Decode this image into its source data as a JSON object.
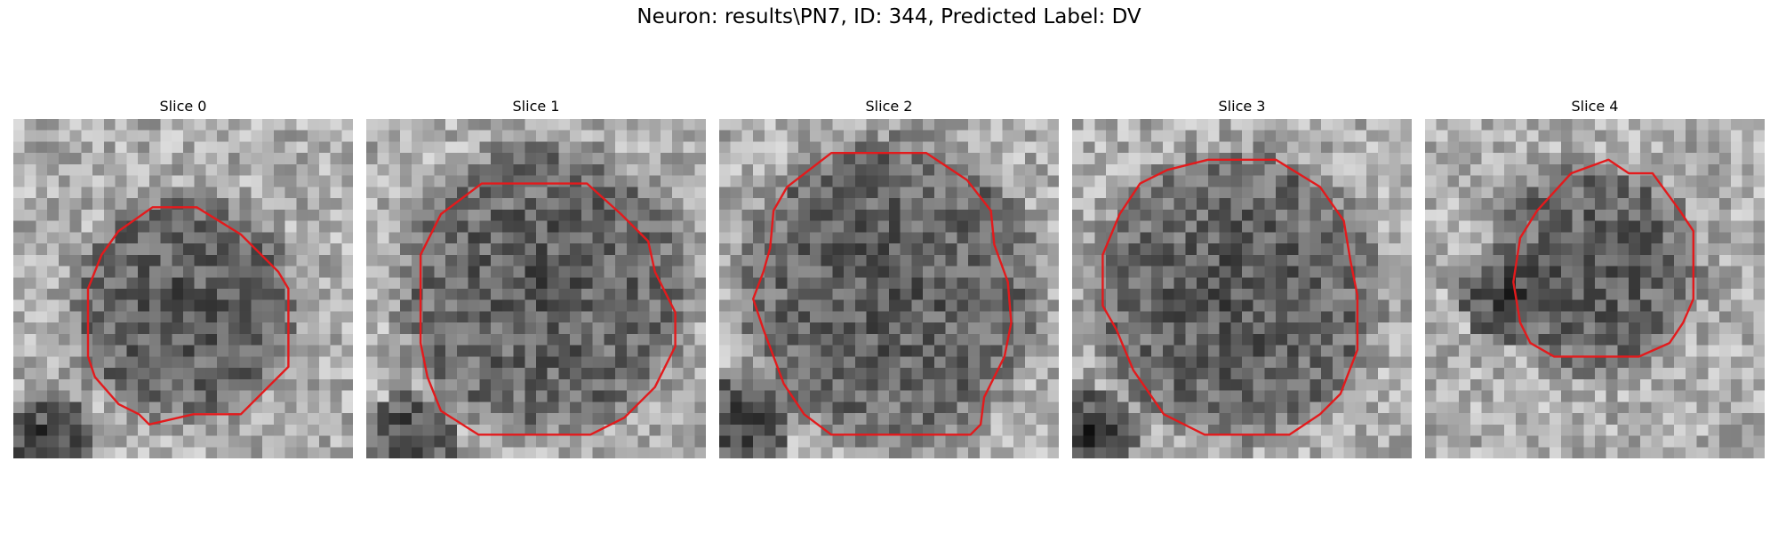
{
  "figure": {
    "title": "Neuron: results\\PN7, ID: 344, Predicted Label: DV"
  },
  "colors": {
    "contour": "#e31a1c",
    "background": "#ffffff",
    "text": "#000000"
  },
  "panels": [
    {
      "title": "Slice 0",
      "seed": 11,
      "contour": [
        [
          0.41,
          0.26
        ],
        [
          0.54,
          0.26
        ],
        [
          0.67,
          0.34
        ],
        [
          0.78,
          0.45
        ],
        [
          0.81,
          0.5
        ],
        [
          0.81,
          0.73
        ],
        [
          0.67,
          0.87
        ],
        [
          0.53,
          0.87
        ],
        [
          0.4,
          0.9
        ],
        [
          0.37,
          0.87
        ],
        [
          0.31,
          0.84
        ],
        [
          0.24,
          0.76
        ],
        [
          0.22,
          0.7
        ],
        [
          0.22,
          0.5
        ],
        [
          0.26,
          0.4
        ],
        [
          0.31,
          0.33
        ]
      ],
      "dark_center": [
        0.5,
        0.56
      ],
      "dark_radius": 0.3,
      "dark_corner": [
        0.1,
        0.95
      ]
    },
    {
      "title": "Slice 1",
      "seed": 23,
      "contour": [
        [
          0.34,
          0.19
        ],
        [
          0.65,
          0.19
        ],
        [
          0.75,
          0.28
        ],
        [
          0.83,
          0.36
        ],
        [
          0.85,
          0.45
        ],
        [
          0.91,
          0.57
        ],
        [
          0.91,
          0.67
        ],
        [
          0.85,
          0.79
        ],
        [
          0.76,
          0.88
        ],
        [
          0.66,
          0.93
        ],
        [
          0.33,
          0.93
        ],
        [
          0.22,
          0.86
        ],
        [
          0.18,
          0.76
        ],
        [
          0.16,
          0.66
        ],
        [
          0.16,
          0.4
        ],
        [
          0.22,
          0.28
        ]
      ],
      "dark_center": [
        0.52,
        0.5
      ],
      "dark_radius": 0.38,
      "dark_corner": [
        0.12,
        0.95
      ]
    },
    {
      "title": "Slice 2",
      "seed": 37,
      "contour": [
        [
          0.33,
          0.1
        ],
        [
          0.61,
          0.1
        ],
        [
          0.73,
          0.18
        ],
        [
          0.8,
          0.27
        ],
        [
          0.81,
          0.37
        ],
        [
          0.85,
          0.48
        ],
        [
          0.86,
          0.6
        ],
        [
          0.84,
          0.7
        ],
        [
          0.78,
          0.82
        ],
        [
          0.77,
          0.9
        ],
        [
          0.74,
          0.93
        ],
        [
          0.33,
          0.93
        ],
        [
          0.25,
          0.87
        ],
        [
          0.19,
          0.78
        ],
        [
          0.13,
          0.62
        ],
        [
          0.1,
          0.53
        ],
        [
          0.13,
          0.45
        ],
        [
          0.15,
          0.38
        ],
        [
          0.16,
          0.27
        ],
        [
          0.2,
          0.2
        ]
      ],
      "dark_center": [
        0.5,
        0.5
      ],
      "dark_radius": 0.4,
      "dark_corner": [
        0.06,
        0.9
      ]
    },
    {
      "title": "Slice 3",
      "seed": 41,
      "contour": [
        [
          0.4,
          0.12
        ],
        [
          0.6,
          0.12
        ],
        [
          0.73,
          0.2
        ],
        [
          0.8,
          0.3
        ],
        [
          0.82,
          0.42
        ],
        [
          0.84,
          0.52
        ],
        [
          0.84,
          0.68
        ],
        [
          0.79,
          0.81
        ],
        [
          0.73,
          0.87
        ],
        [
          0.64,
          0.93
        ],
        [
          0.39,
          0.93
        ],
        [
          0.27,
          0.87
        ],
        [
          0.18,
          0.74
        ],
        [
          0.13,
          0.62
        ],
        [
          0.09,
          0.55
        ],
        [
          0.09,
          0.4
        ],
        [
          0.14,
          0.28
        ],
        [
          0.2,
          0.19
        ],
        [
          0.28,
          0.15
        ]
      ],
      "dark_center": [
        0.48,
        0.52
      ],
      "dark_radius": 0.38,
      "dark_corner": [
        0.05,
        0.92
      ]
    },
    {
      "title": "Slice 4",
      "seed": 53,
      "contour": [
        [
          0.43,
          0.16
        ],
        [
          0.54,
          0.12
        ],
        [
          0.6,
          0.16
        ],
        [
          0.67,
          0.16
        ],
        [
          0.75,
          0.27
        ],
        [
          0.79,
          0.33
        ],
        [
          0.79,
          0.53
        ],
        [
          0.76,
          0.6
        ],
        [
          0.72,
          0.66
        ],
        [
          0.63,
          0.7
        ],
        [
          0.38,
          0.7
        ],
        [
          0.31,
          0.66
        ],
        [
          0.28,
          0.6
        ],
        [
          0.26,
          0.48
        ],
        [
          0.28,
          0.35
        ],
        [
          0.33,
          0.27
        ]
      ],
      "dark_center": [
        0.5,
        0.45
      ],
      "dark_radius": 0.28,
      "dark_corner": [
        0.25,
        0.52
      ]
    }
  ]
}
